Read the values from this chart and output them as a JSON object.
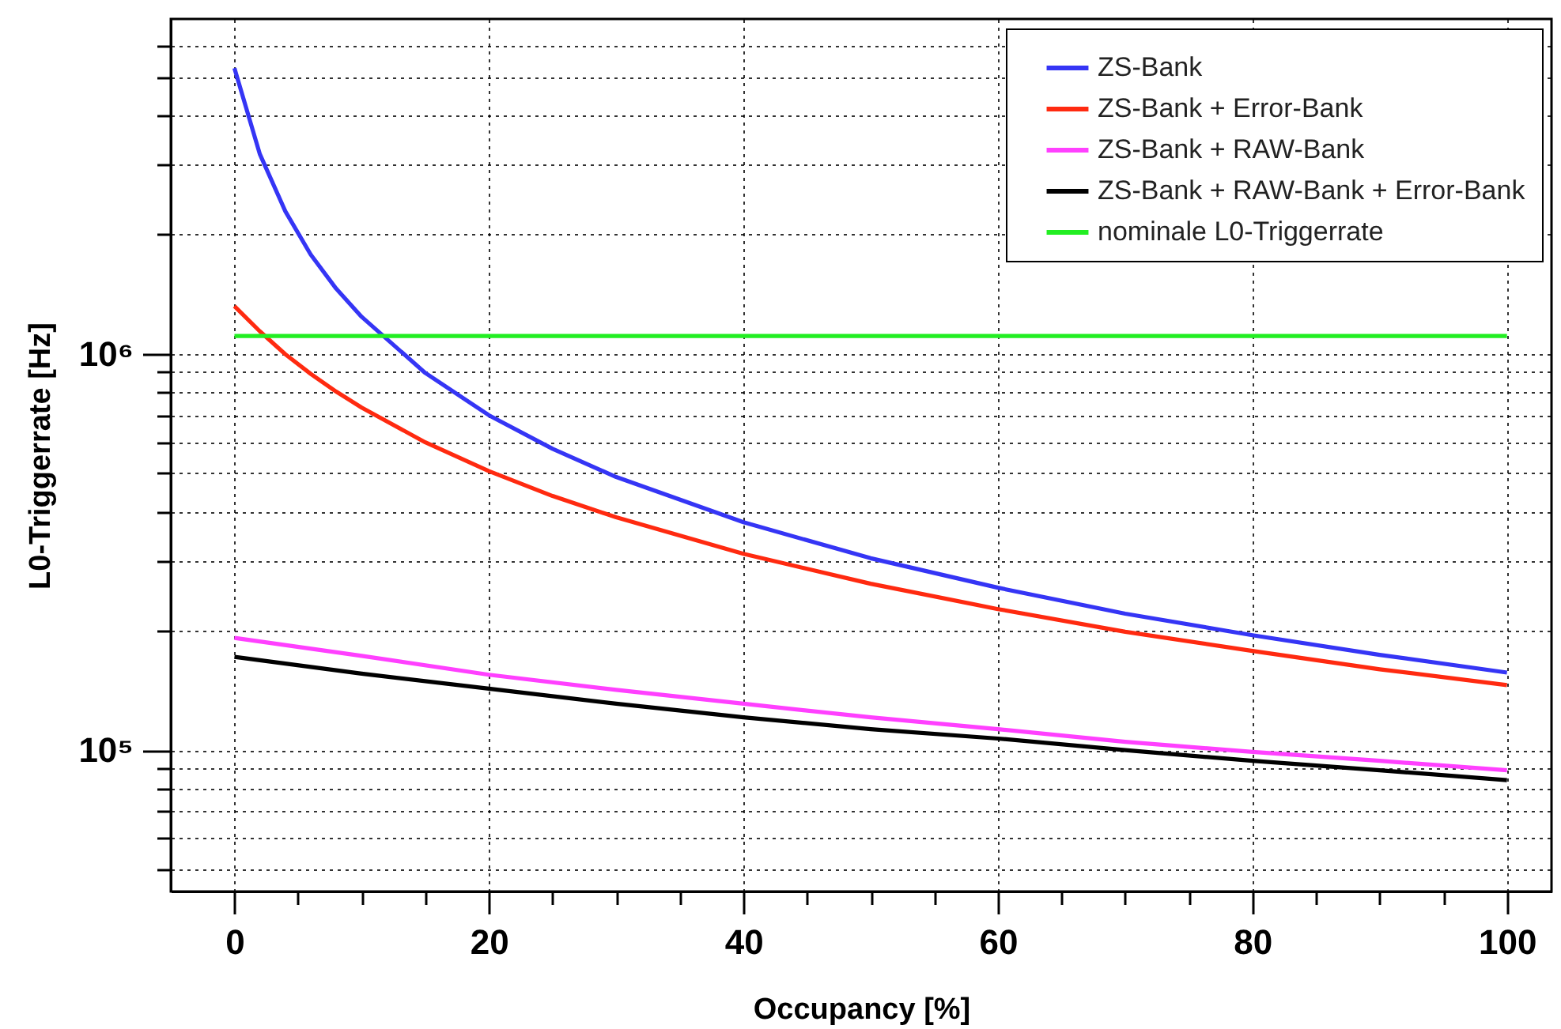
{
  "chart_data": {
    "type": "line",
    "xlabel": "Occupancy  [%]",
    "ylabel": "L0-Triggerrate  [Hz]",
    "log": "y",
    "grid": true,
    "legend": "top right",
    "x": [
      0,
      2,
      4,
      6,
      8,
      10,
      15,
      20,
      25,
      30,
      40,
      50,
      60,
      70,
      80,
      90,
      100
    ],
    "xlim": [
      -5,
      103.5
    ],
    "xticks": [
      0,
      {
        "value": 5,
        "label": null
      },
      {
        "value": 10,
        "label": null
      },
      {
        "value": 15,
        "label": null
      },
      20,
      {
        "value": 25,
        "label": null
      },
      {
        "value": 30,
        "label": null
      },
      {
        "value": 35,
        "label": null
      },
      40,
      {
        "value": 45,
        "label": null
      },
      {
        "value": 50,
        "label": null
      },
      {
        "value": 55,
        "label": null
      },
      60,
      {
        "value": 65,
        "label": null
      },
      {
        "value": 70,
        "label": null
      },
      {
        "value": 75,
        "label": null
      },
      80,
      {
        "value": 85,
        "label": null
      },
      {
        "value": 90,
        "label": null
      },
      {
        "value": 95,
        "label": null
      },
      100
    ],
    "ylim": [
      44000,
      7000000
    ],
    "yticks": [
      {
        "value": 50000,
        "label": null
      },
      {
        "value": 60000,
        "label": null
      },
      {
        "value": 70000,
        "label": null
      },
      {
        "value": 80000,
        "label": null
      },
      {
        "value": 90000,
        "label": null
      },
      {
        "value": 100000,
        "label": "10⁵"
      },
      {
        "value": 200000,
        "label": null
      },
      {
        "value": 300000,
        "label": null
      },
      {
        "value": 400000,
        "label": null
      },
      {
        "value": 500000,
        "label": null
      },
      {
        "value": 600000,
        "label": null
      },
      {
        "value": 700000,
        "label": null
      },
      {
        "value": 800000,
        "label": null
      },
      {
        "value": 900000,
        "label": null
      },
      {
        "value": 1000000,
        "label": "10⁶"
      },
      {
        "value": 2000000,
        "label": null
      },
      {
        "value": 3000000,
        "label": null
      },
      {
        "value": 4000000,
        "label": null
      },
      {
        "value": 5000000,
        "label": null
      },
      {
        "value": 6000000,
        "label": null
      }
    ],
    "series": [
      {
        "name": "ZS-Bank",
        "color": "#3535f5",
        "values": [
          5260000,
          3190000,
          2290000,
          1780000,
          1460000,
          1240000,
          895000,
          700000,
          576000,
          489000,
          376000,
          305000,
          257000,
          221000,
          195000,
          174000,
          157000
        ]
      },
      {
        "name": "ZS-Bank + Error-Bank",
        "color": "#ff2a10",
        "values": [
          1320000,
          1140000,
          998000,
          890000,
          803000,
          732000,
          598000,
          506000,
          438000,
          387000,
          313000,
          263000,
          227000,
          199000,
          178000,
          160000,
          146000
        ]
      },
      {
        "name": "ZS-Bank + RAW-Bank",
        "color": "#ff40ff",
        "x": [
          0,
          10,
          20,
          30,
          40,
          50,
          60,
          70,
          80,
          90,
          100
        ],
        "values": [
          192000,
          173000,
          155000,
          142000,
          131000,
          121000,
          113000,
          105000,
          99000,
          94000,
          89000
        ]
      },
      {
        "name": "ZS-Bank + RAW-Bank + Error-Bank",
        "color": "#000000",
        "x": [
          0,
          10,
          20,
          30,
          40,
          50,
          60,
          70,
          80,
          90,
          100
        ],
        "values": [
          172000,
          156000,
          143000,
          131000,
          121000,
          113000,
          107000,
          100000,
          94000,
          89000,
          84000
        ]
      },
      {
        "name": "nominale L0-Triggerrate",
        "color": "#22ee22",
        "x": [
          0,
          100
        ],
        "values": [
          1110000,
          1110000
        ]
      }
    ]
  }
}
